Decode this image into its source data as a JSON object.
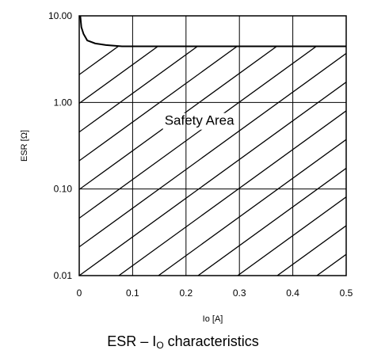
{
  "chart_data": {
    "type": "area",
    "title": "",
    "xlabel": "Io [A]",
    "ylabel": "ESR [Ω]",
    "xlim": [
      0,
      0.5
    ],
    "ylim": [
      0.01,
      10
    ],
    "yscale": "log",
    "grid": true,
    "x_ticks": [
      "0",
      "0.1",
      "0.2",
      "0.3",
      "0.4",
      "0.5"
    ],
    "y_ticks": [
      "10.00",
      "1.00",
      "0.10",
      "0.01"
    ],
    "boundary": {
      "x": [
        0.002,
        0.004,
        0.008,
        0.015,
        0.03,
        0.05,
        0.08,
        0.5
      ],
      "y": [
        10,
        7.4,
        6.2,
        5.2,
        4.8,
        4.6,
        4.45,
        4.45
      ]
    },
    "region_label": "Safety Area",
    "region_fill": "hatched"
  },
  "caption": {
    "main": "ESR – I",
    "sub": "O",
    "rest": " characteristics"
  },
  "colors": {
    "line": "#000000",
    "background": "#ffffff"
  }
}
